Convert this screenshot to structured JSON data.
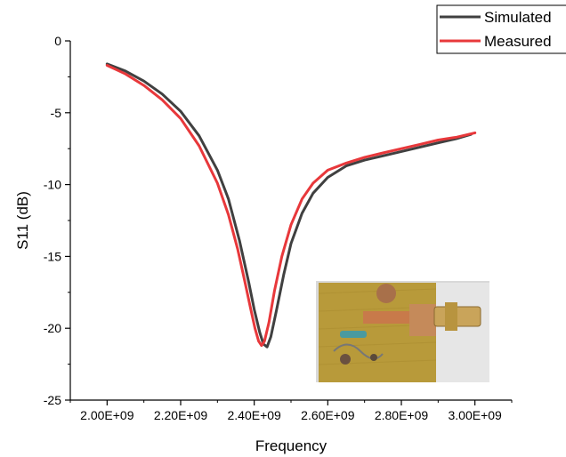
{
  "chart_data": {
    "type": "line",
    "title": "",
    "xlabel": "Frequency",
    "ylabel": "S11 (dB)",
    "xlim": [
      1900000000,
      3100000000
    ],
    "ylim": [
      -25,
      0
    ],
    "x_ticks": [
      2000000000,
      2200000000,
      2400000000,
      2600000000,
      2800000000,
      3000000000
    ],
    "x_tick_labels": [
      "2.00E+09",
      "2.20E+09",
      "2.40E+09",
      "2.60E+09",
      "2.80E+09",
      "3.00E+09"
    ],
    "y_ticks": [
      0,
      -5,
      -10,
      -15,
      -20,
      -25
    ],
    "y_tick_labels": [
      "0",
      "-5",
      "-10",
      "-15",
      "-20",
      "-25"
    ],
    "legend_position": "top-right",
    "grid": false,
    "series": [
      {
        "name": "Simulated",
        "color": "#404040",
        "points": [
          [
            2000000000,
            -1.6
          ],
          [
            2050000000,
            -2.1
          ],
          [
            2100000000,
            -2.8
          ],
          [
            2150000000,
            -3.7
          ],
          [
            2200000000,
            -4.9
          ],
          [
            2250000000,
            -6.6
          ],
          [
            2300000000,
            -9.0
          ],
          [
            2330000000,
            -11.0
          ],
          [
            2360000000,
            -13.9
          ],
          [
            2385000000,
            -16.8
          ],
          [
            2400000000,
            -18.7
          ],
          [
            2415000000,
            -20.3
          ],
          [
            2425000000,
            -21.1
          ],
          [
            2435000000,
            -21.3
          ],
          [
            2445000000,
            -20.6
          ],
          [
            2460000000,
            -18.8
          ],
          [
            2480000000,
            -16.3
          ],
          [
            2500000000,
            -14.1
          ],
          [
            2530000000,
            -12.0
          ],
          [
            2560000000,
            -10.6
          ],
          [
            2600000000,
            -9.5
          ],
          [
            2650000000,
            -8.7
          ],
          [
            2700000000,
            -8.3
          ],
          [
            2750000000,
            -8.0
          ],
          [
            2800000000,
            -7.7
          ],
          [
            2850000000,
            -7.4
          ],
          [
            2900000000,
            -7.1
          ],
          [
            2950000000,
            -6.8
          ],
          [
            2990000000,
            -6.5
          ]
        ]
      },
      {
        "name": "Measured",
        "color": "#e8383b",
        "points": [
          [
            2000000000,
            -1.7
          ],
          [
            2050000000,
            -2.3
          ],
          [
            2100000000,
            -3.1
          ],
          [
            2150000000,
            -4.1
          ],
          [
            2200000000,
            -5.4
          ],
          [
            2250000000,
            -7.3
          ],
          [
            2300000000,
            -9.9
          ],
          [
            2330000000,
            -12.1
          ],
          [
            2355000000,
            -14.5
          ],
          [
            2375000000,
            -16.8
          ],
          [
            2390000000,
            -18.6
          ],
          [
            2402000000,
            -20.0
          ],
          [
            2412000000,
            -20.9
          ],
          [
            2420000000,
            -21.2
          ],
          [
            2428000000,
            -20.9
          ],
          [
            2440000000,
            -19.6
          ],
          [
            2455000000,
            -17.4
          ],
          [
            2475000000,
            -15.0
          ],
          [
            2500000000,
            -12.8
          ],
          [
            2530000000,
            -11.0
          ],
          [
            2560000000,
            -9.9
          ],
          [
            2600000000,
            -9.0
          ],
          [
            2650000000,
            -8.5
          ],
          [
            2700000000,
            -8.1
          ],
          [
            2750000000,
            -7.8
          ],
          [
            2800000000,
            -7.5
          ],
          [
            2850000000,
            -7.2
          ],
          [
            2900000000,
            -6.9
          ],
          [
            2950000000,
            -6.7
          ],
          [
            3000000000,
            -6.4
          ]
        ]
      }
    ]
  },
  "inset_photo": {
    "board_color": "#b89a3a",
    "background_color": "#d9d9d9",
    "connector_color": "#c9a45a"
  }
}
